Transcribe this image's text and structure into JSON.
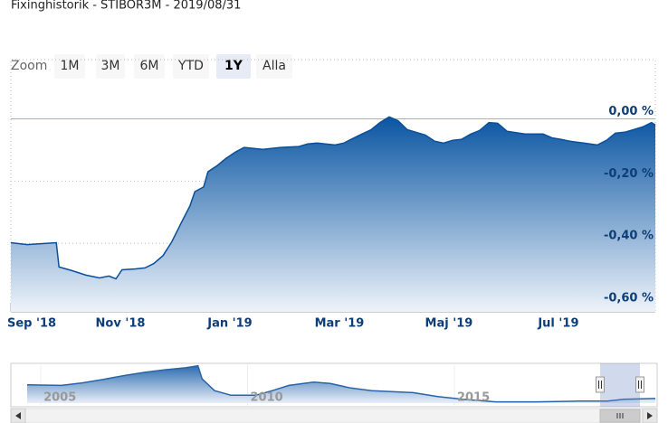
{
  "chart_data": [
    {
      "type": "area",
      "title": "Fixinghistorik - STIBOR3M - 2019/08/31",
      "x": [
        0,
        0.3,
        0.55,
        0.83,
        0.88,
        1.12,
        1.37,
        1.62,
        1.79,
        1.92,
        2.03,
        2.28,
        2.45,
        2.61,
        2.78,
        2.94,
        3.11,
        3.27,
        3.36,
        3.52,
        3.6,
        3.77,
        3.93,
        4.1,
        4.26,
        4.6,
        4.93,
        5.26,
        5.42,
        5.59,
        5.92,
        6.08,
        6.25,
        6.41,
        6.58,
        6.74,
        6.91,
        7.07,
        7.24,
        7.4,
        7.57,
        7.74,
        7.9,
        8.07,
        8.23,
        8.4,
        8.56,
        8.73,
        8.89,
        9.06,
        9.39,
        9.72,
        9.88,
        10.05,
        10.21,
        10.46,
        10.71,
        10.88,
        11.04,
        11.21,
        11.37,
        11.54,
        11.7,
        11.77
      ],
      "values": [
        -0.398,
        -0.404,
        -0.401,
        -0.398,
        -0.476,
        -0.488,
        -0.502,
        -0.511,
        -0.505,
        -0.514,
        -0.485,
        -0.482,
        -0.479,
        -0.465,
        -0.439,
        -0.395,
        -0.335,
        -0.28,
        -0.234,
        -0.219,
        -0.17,
        -0.15,
        -0.127,
        -0.107,
        -0.092,
        -0.098,
        -0.092,
        -0.089,
        -0.081,
        -0.078,
        -0.084,
        -0.078,
        -0.063,
        -0.049,
        -0.035,
        -0.012,
        0.006,
        -0.006,
        -0.035,
        -0.043,
        -0.052,
        -0.072,
        -0.078,
        -0.069,
        -0.066,
        -0.049,
        -0.038,
        -0.012,
        -0.014,
        -0.04,
        -0.049,
        -0.049,
        -0.061,
        -0.066,
        -0.072,
        -0.078,
        -0.084,
        -0.069,
        -0.046,
        -0.043,
        -0.035,
        -0.026,
        -0.012,
        -0.02
      ],
      "color": "#0b4f9a",
      "xlim": [
        0,
        11.77
      ],
      "xticks": [
        {
          "value": 0,
          "label": "Sep '18"
        },
        {
          "value": 2,
          "label": "Nov '18"
        },
        {
          "value": 4,
          "label": "Jan '19"
        },
        {
          "value": 6,
          "label": "Mar '19"
        },
        {
          "value": 8,
          "label": "Maj '19"
        },
        {
          "value": 10,
          "label": "Jul '19"
        }
      ],
      "ylim": [
        -0.62,
        0.19
      ],
      "yticks": [
        {
          "value": 0,
          "label": "0,00 %"
        },
        {
          "value": -0.2,
          "label": "-0,20 %"
        },
        {
          "value": -0.4,
          "label": "-0,40 %"
        },
        {
          "value": -0.6,
          "label": "-0,60 %"
        }
      ],
      "grid": true
    },
    {
      "type": "area",
      "x": [
        2004.67,
        2005.5,
        2006,
        2006.5,
        2007,
        2007.5,
        2008,
        2008.5,
        2008.8,
        2008.9,
        2009.2,
        2009.6,
        2010.2,
        2010.6,
        2011,
        2011.6,
        2012,
        2012.5,
        2013,
        2014,
        2014.6,
        2015.2,
        2016,
        2017,
        2018,
        2018.7,
        2019.1,
        2019.86
      ],
      "values": [
        2.1,
        2.0,
        2.4,
        2.9,
        3.5,
        4.0,
        4.4,
        4.7,
        5.0,
        3.0,
        1.2,
        0.5,
        0.5,
        1.2,
        2.0,
        2.5,
        2.3,
        1.6,
        1.2,
        0.9,
        0.3,
        -0.1,
        -0.5,
        -0.5,
        -0.4,
        -0.4,
        -0.1,
        0.0
      ],
      "color": "#2a64a8",
      "xlim": [
        2004.67,
        2019.86
      ],
      "xticks": [
        2005,
        2010,
        2015
      ],
      "ylim": [
        -0.7,
        5.1
      ]
    }
  ],
  "range_selector": {
    "label": "Zoom",
    "buttons": [
      "1M",
      "3M",
      "6M",
      "YTD",
      "1Y",
      "Alla"
    ],
    "selected": "1Y"
  }
}
